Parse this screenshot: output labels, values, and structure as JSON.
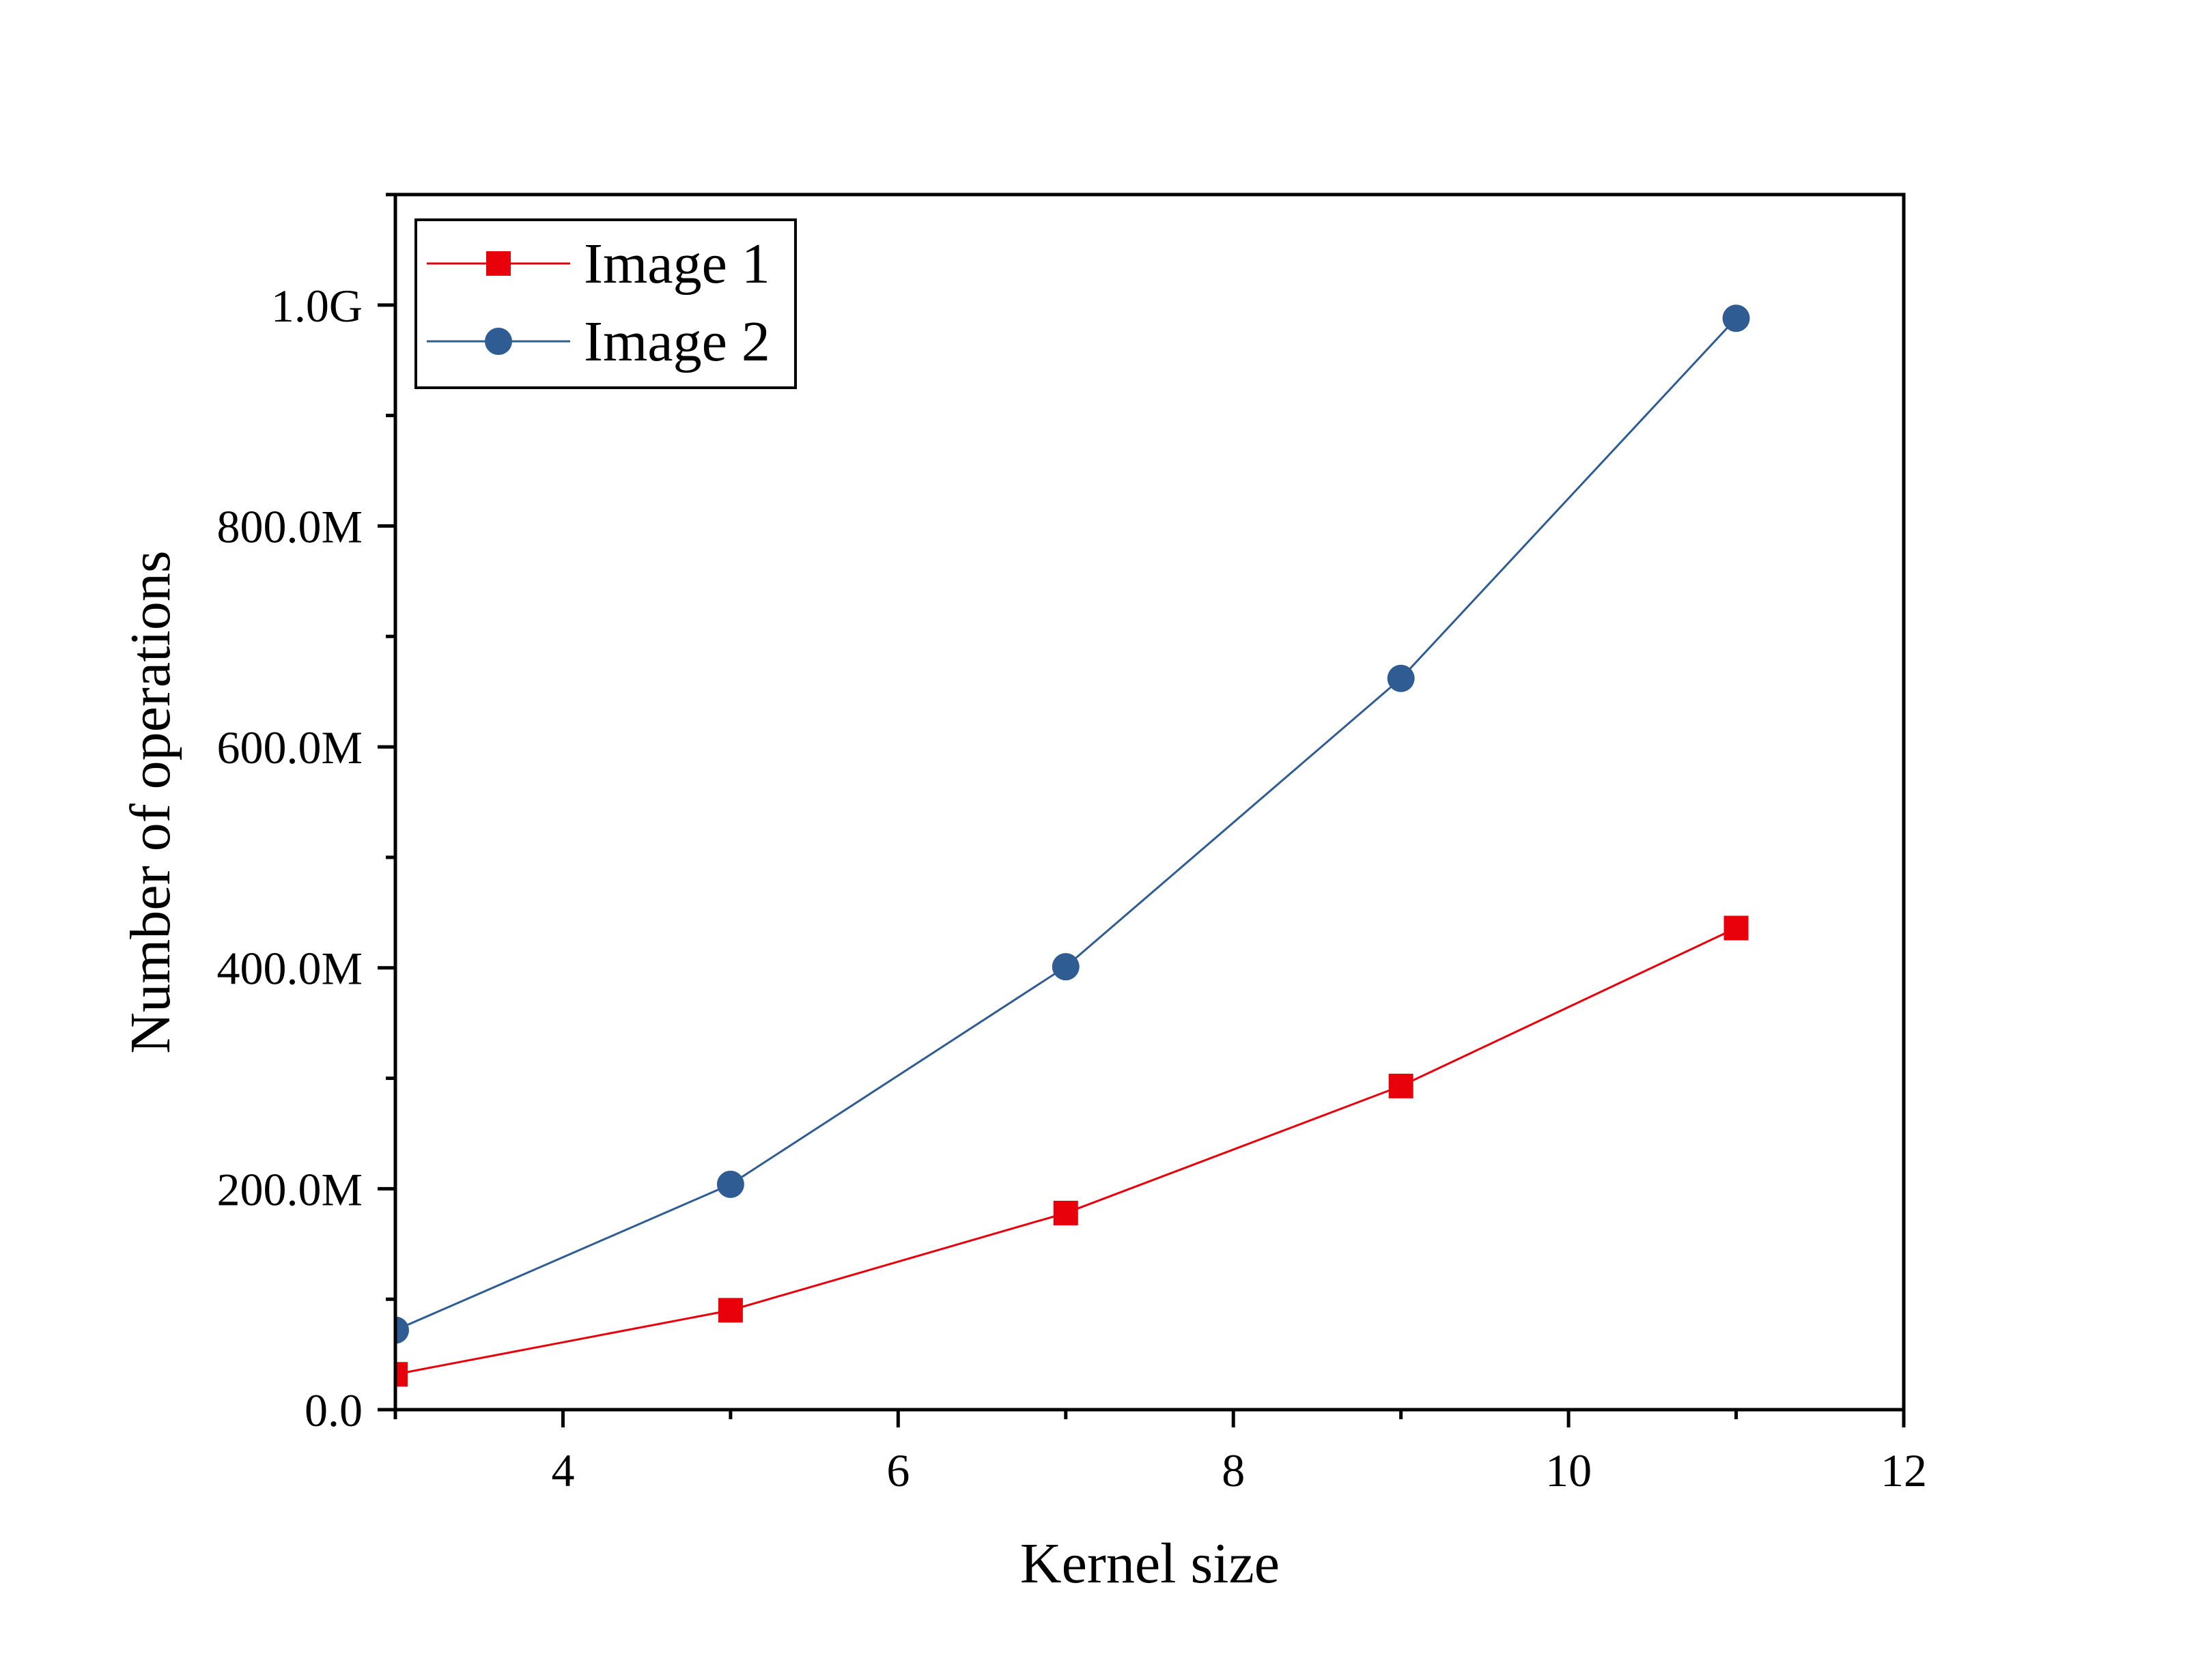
{
  "chart_data": {
    "type": "line",
    "title": "",
    "xlabel": "Kernel size",
    "ylabel": "Number of operations",
    "xlim": [
      3,
      12
    ],
    "ylim": [
      0,
      1100000000
    ],
    "x_ticks": [
      4,
      6,
      8,
      10,
      12
    ],
    "x_tick_labels": [
      "4",
      "6",
      "8",
      "10",
      "12"
    ],
    "y_ticks": [
      0,
      200000000,
      400000000,
      600000000,
      800000000,
      1000000000
    ],
    "y_tick_labels": [
      "0.0",
      "200.0M",
      "400.0M",
      "600.0M",
      "800.0M",
      "1.0G"
    ],
    "grid": false,
    "legend_position": "top-left",
    "series": [
      {
        "name": "Image 1",
        "color": "#e8000b",
        "marker": "square",
        "x": [
          3,
          5,
          7,
          9,
          11
        ],
        "values": [
          32000000,
          90000000,
          178000000,
          293000000,
          436000000
        ]
      },
      {
        "name": "Image 2",
        "color": "#2f5d93",
        "marker": "circle",
        "x": [
          3,
          5,
          7,
          9,
          11
        ],
        "values": [
          72000000,
          204000000,
          401000000,
          662000000,
          988000000
        ]
      }
    ]
  }
}
